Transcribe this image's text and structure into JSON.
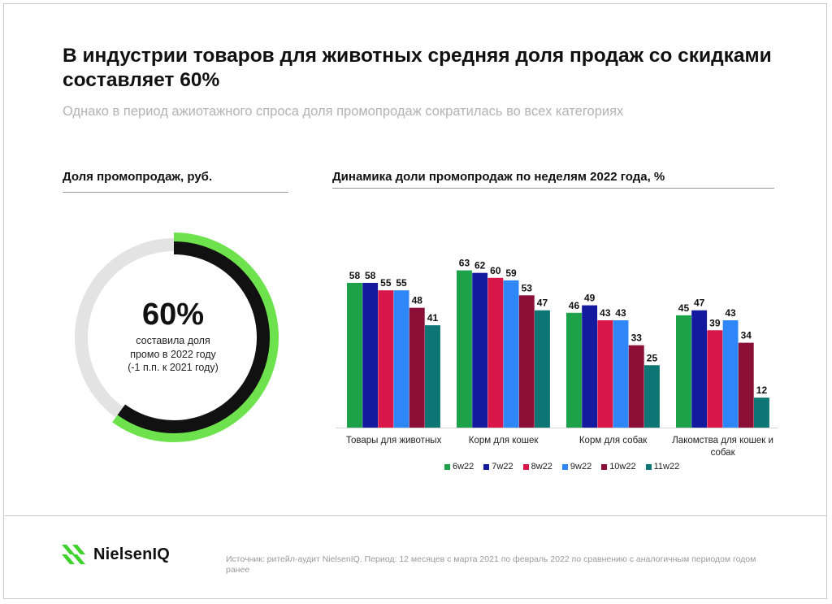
{
  "title": "В индустрии товаров для животных средняя доля продаж со скидками составляет 60%",
  "subtitle": "Однако в период ажиотажного спроса доля промопродаж сократилась во всех категориях",
  "left_section": {
    "title": "Доля промопродаж, руб.",
    "value": "60%",
    "value_fraction": 0.6,
    "caption_lines": [
      "составила доля",
      "промо в 2022 году",
      "(-1 п.п. к 2021 году)"
    ],
    "colors": {
      "track": "#e3e3e3",
      "black": "#111111",
      "green": "#6ee24d"
    }
  },
  "right_section": {
    "title": "Динамика доли промопродаж по неделям 2022 года, %"
  },
  "chart_data": {
    "type": "bar",
    "categories": [
      "Товары для животных",
      "Корм для кошек",
      "Корм для собак",
      "Лакомства для кошек и собак"
    ],
    "series": [
      {
        "name": "6w22",
        "color": "#1da24a",
        "values": [
          58,
          63,
          46,
          45
        ]
      },
      {
        "name": "7w22",
        "color": "#141a9e",
        "values": [
          58,
          62,
          49,
          47
        ]
      },
      {
        "name": "8w22",
        "color": "#d8164a",
        "values": [
          55,
          60,
          43,
          39
        ]
      },
      {
        "name": "9w22",
        "color": "#2f86f6",
        "values": [
          55,
          59,
          43,
          43
        ]
      },
      {
        "name": "10w22",
        "color": "#8c0f38",
        "values": [
          48,
          53,
          33,
          34
        ]
      },
      {
        "name": "11w22",
        "color": "#0d7574",
        "values": [
          41,
          47,
          25,
          12
        ]
      }
    ],
    "ylim": [
      0,
      70
    ],
    "legend_position": "bottom",
    "grid": false
  },
  "brand": {
    "name": "NielsenIQ",
    "icon": "nielseniq-logo-icon",
    "color": "#3fd12e"
  },
  "source": "Источник: ритейл-аудит NielsenIQ. Период: 12 месяцев с марта 2021 по февраль 2022 по сравнению с аналогичным периодом годом ранее"
}
